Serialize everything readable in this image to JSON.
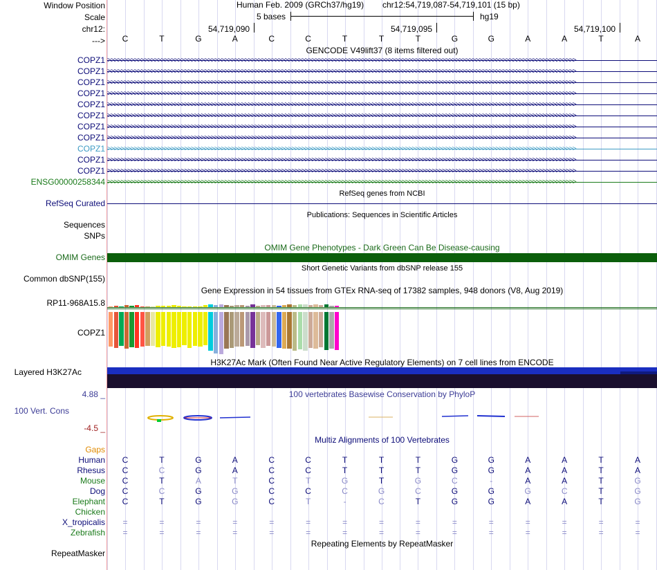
{
  "header": {
    "window_position_label": "Window Position",
    "scale_label": "Scale",
    "chrom_label": "chr12:",
    "strand_label": "--->",
    "assembly_text": "Human Feb. 2009 (GRCh37/hg19)",
    "position_text": "chr12:54,719,087-54,719,101 (15 bp)",
    "scale_bases_text": "5 bases",
    "scale_db_text": "hg19",
    "coord_ticks": [
      "54,719,090",
      "54,719,095",
      "54,719,100"
    ],
    "bases": [
      "C",
      "T",
      "G",
      "A",
      "C",
      "C",
      "T",
      "T",
      "T",
      "G",
      "G",
      "A",
      "A",
      "T",
      "A"
    ]
  },
  "gencode": {
    "title": "GENCODE V49lift37 (8 items filtered out)",
    "items": [
      {
        "label": "COPZ1",
        "color": "#0c0c78"
      },
      {
        "label": "COPZ1",
        "color": "#0c0c78"
      },
      {
        "label": "COPZ1",
        "color": "#0c0c78"
      },
      {
        "label": "COPZ1",
        "color": "#0c0c78"
      },
      {
        "label": "COPZ1",
        "color": "#0c0c78"
      },
      {
        "label": "COPZ1",
        "color": "#0c0c78"
      },
      {
        "label": "COPZ1",
        "color": "#0c0c78"
      },
      {
        "label": "COPZ1",
        "color": "#0c0c78"
      },
      {
        "label": "COPZ1",
        "color": "#3d9bc4"
      },
      {
        "label": "COPZ1",
        "color": "#0c0c78"
      },
      {
        "label": "COPZ1",
        "color": "#0c0c78"
      },
      {
        "label": "ENSG00000258344",
        "color": "#1a7a1a"
      }
    ]
  },
  "refseq": {
    "title": "RefSeq genes from NCBI",
    "label": "RefSeq Curated"
  },
  "publications": {
    "title": "Publications: Sequences in Scientific Articles",
    "label1": "Sequences",
    "label2": "SNPs"
  },
  "omim": {
    "title": "OMIM Gene Phenotypes - Dark Green Can Be Disease-causing",
    "label": "OMIM Genes"
  },
  "dbsnp": {
    "title": "Short Genetic Variants from dbSNP release 155",
    "label": "Common dbSNP(155)"
  },
  "gtex": {
    "title": "Gene Expression in 54 tissues from GTEx RNA-seq of 17382 samples, 948 donors (V8, Aug 2019)",
    "label_top": "RP11-968A15.8",
    "label_main": "COPZ1",
    "colors": [
      "#ff9966",
      "#e6553a",
      "#00aa55",
      "#cc6633",
      "#1a9933",
      "#ff3322",
      "#ff5544",
      "#d0a060",
      "#e8e8a0",
      "#eeee00",
      "#eeee00",
      "#eeee00",
      "#eeee00",
      "#eeee00",
      "#eeee00",
      "#eeee00",
      "#eeee00",
      "#eeee00",
      "#eeee00",
      "#00ccdd",
      "#88b0dd",
      "#bbaadd",
      "#997755",
      "#aa9977",
      "#bbaa99",
      "#bb9977",
      "#aa99aa",
      "#773399",
      "#bbaa88",
      "#ddbbbb",
      "#cc9999",
      "#ccbb99",
      "#3366ee",
      "#ddaa55",
      "#aa7733",
      "#bbbb88",
      "#aaddaa",
      "#ccddcc",
      "#ccaa99",
      "#ddbb99",
      "#ccaa99",
      "#007733",
      "#aaaaaa",
      "#ff00cc"
    ],
    "top_values": [
      1,
      2,
      1,
      3,
      2,
      3,
      1,
      1,
      1,
      2,
      2,
      2,
      3,
      2,
      1,
      1,
      1,
      1,
      3,
      4,
      3,
      4,
      3,
      2,
      3,
      3,
      2,
      4,
      2,
      3,
      3,
      3,
      2,
      3,
      4,
      3,
      4,
      4,
      3,
      4,
      3,
      4,
      2,
      2
    ],
    "main_values": [
      50,
      52,
      49,
      53,
      51,
      52,
      50,
      49,
      49,
      51,
      49,
      50,
      52,
      51,
      48,
      52,
      49,
      50,
      48,
      56,
      60,
      61,
      53,
      52,
      50,
      50,
      49,
      52,
      48,
      52,
      49,
      50,
      52,
      53,
      53,
      56,
      54,
      56,
      52,
      53,
      51,
      55,
      53,
      55
    ]
  },
  "h3k27ac": {
    "title": "H3K27Ac Mark (Often Found Near Active Regulatory Elements) on 7 cell lines from ENCODE",
    "label": "Layered H3K27Ac"
  },
  "cons": {
    "title": "100 vertebrates Basewise Conservation by PhyloP",
    "label": "100 Vert. Cons",
    "max_label": "4.88 _",
    "min_label": "-4.5 _"
  },
  "multiz": {
    "title": "Multiz Alignments of 100 Vertebrates",
    "gaps_label": "Gaps",
    "species": [
      {
        "name": "Human",
        "color": "#0c0c78",
        "seq": [
          "C",
          "T",
          "G",
          "A",
          "C",
          "C",
          "T",
          "T",
          "T",
          "G",
          "G",
          "A",
          "A",
          "T",
          "A"
        ]
      },
      {
        "name": "Rhesus",
        "color": "#0c0c78",
        "seq": [
          "C",
          "C",
          "G",
          "A",
          "C",
          "C",
          "T",
          "T",
          "T",
          "G",
          "G",
          "A",
          "A",
          "T",
          "A"
        ]
      },
      {
        "name": "Mouse",
        "color": "#1a7a1a",
        "seq": [
          "C",
          "T",
          "A",
          "T",
          "C",
          "T",
          "G",
          "T",
          "G",
          "C",
          "-",
          "A",
          "A",
          "T",
          "G"
        ]
      },
      {
        "name": "Dog",
        "color": "#0c0c78",
        "seq": [
          "C",
          "C",
          "G",
          "G",
          "C",
          "C",
          "C",
          "G",
          "C",
          "G",
          "G",
          "G",
          "C",
          "T",
          "G"
        ]
      },
      {
        "name": "Elephant",
        "color": "#1a7a1a",
        "seq": [
          "C",
          "T",
          "G",
          "G",
          "C",
          "T",
          "-",
          "C",
          "T",
          "G",
          "G",
          "A",
          "A",
          "T",
          "G"
        ]
      },
      {
        "name": "Chicken",
        "color": "#1a7a1a",
        "seq": []
      },
      {
        "name": "X_tropicalis",
        "color": "#0c0c78",
        "seq": [
          "=",
          "=",
          "=",
          "=",
          "=",
          "=",
          "=",
          "=",
          "=",
          "=",
          "=",
          "=",
          "=",
          "=",
          "="
        ]
      },
      {
        "name": "Zebrafish",
        "color": "#1a7a1a",
        "seq": [
          "=",
          "=",
          "=",
          "=",
          "=",
          "=",
          "=",
          "=",
          "=",
          "=",
          "=",
          "=",
          "=",
          "=",
          "="
        ]
      }
    ]
  },
  "repeatmasker": {
    "title": "Repeating Elements by RepeatMasker",
    "label": "RepeatMasker"
  }
}
